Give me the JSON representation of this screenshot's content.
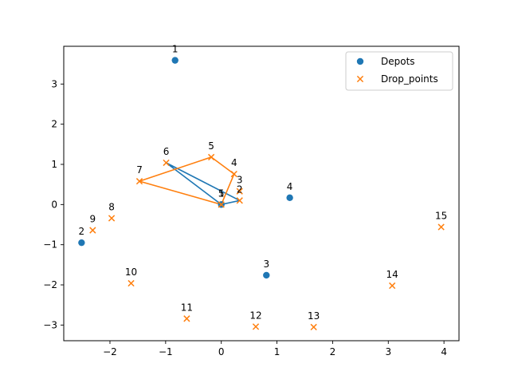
{
  "chart_data": {
    "type": "scatter",
    "xlim": [
      -2.83,
      4.27
    ],
    "ylim": [
      -3.39,
      3.94
    ],
    "xticks": [
      -2,
      -1,
      0,
      1,
      2,
      3,
      4
    ],
    "yticks": [
      -3,
      -2,
      -1,
      0,
      1,
      2,
      3
    ],
    "grid": false,
    "legend": {
      "placement": "top-right",
      "entries": [
        "Depots",
        "Drop_points"
      ]
    },
    "colors": {
      "depots": "#1f77b4",
      "drop_points": "#ff7f0e"
    },
    "series": [
      {
        "name": "Depots",
        "marker": "circle",
        "points": [
          {
            "label": "1",
            "x": -0.83,
            "y": 3.59
          },
          {
            "label": "2",
            "x": -2.51,
            "y": -0.95
          },
          {
            "label": "3",
            "x": 0.81,
            "y": -1.76
          },
          {
            "label": "4",
            "x": 1.23,
            "y": 0.17
          },
          {
            "label": "5",
            "x": 0.0,
            "y": 0.0
          }
        ]
      },
      {
        "name": "Drop_points",
        "marker": "x",
        "points": [
          {
            "label": "1",
            "x": 0.0,
            "y": 0.0
          },
          {
            "label": "2",
            "x": 0.33,
            "y": 0.1
          },
          {
            "label": "3",
            "x": 0.33,
            "y": 0.33
          },
          {
            "label": "4",
            "x": 0.23,
            "y": 0.76
          },
          {
            "label": "5",
            "x": -0.18,
            "y": 1.18
          },
          {
            "label": "6",
            "x": -0.99,
            "y": 1.04
          },
          {
            "label": "7",
            "x": -1.47,
            "y": 0.58
          },
          {
            "label": "8",
            "x": -1.97,
            "y": -0.34
          },
          {
            "label": "9",
            "x": -2.31,
            "y": -0.64
          },
          {
            "label": "10",
            "x": -1.62,
            "y": -1.96
          },
          {
            "label": "11",
            "x": -0.62,
            "y": -2.84
          },
          {
            "label": "12",
            "x": 0.62,
            "y": -3.04
          },
          {
            "label": "13",
            "x": 1.66,
            "y": -3.05
          },
          {
            "label": "14",
            "x": 3.07,
            "y": -2.02
          },
          {
            "label": "15",
            "x": 3.95,
            "y": -0.56
          }
        ]
      }
    ],
    "routes": [
      {
        "name": "route-blue",
        "color": "#1f77b4",
        "path": [
          [
            0.0,
            0.0
          ],
          [
            -0.99,
            1.04
          ],
          [
            0.33,
            0.1
          ],
          [
            0.0,
            0.0
          ]
        ]
      },
      {
        "name": "route-orange",
        "color": "#ff7f0e",
        "path": [
          [
            0.0,
            0.0
          ],
          [
            0.23,
            0.76
          ],
          [
            -0.18,
            1.18
          ],
          [
            -1.47,
            0.58
          ],
          [
            0.0,
            0.0
          ]
        ]
      }
    ]
  }
}
